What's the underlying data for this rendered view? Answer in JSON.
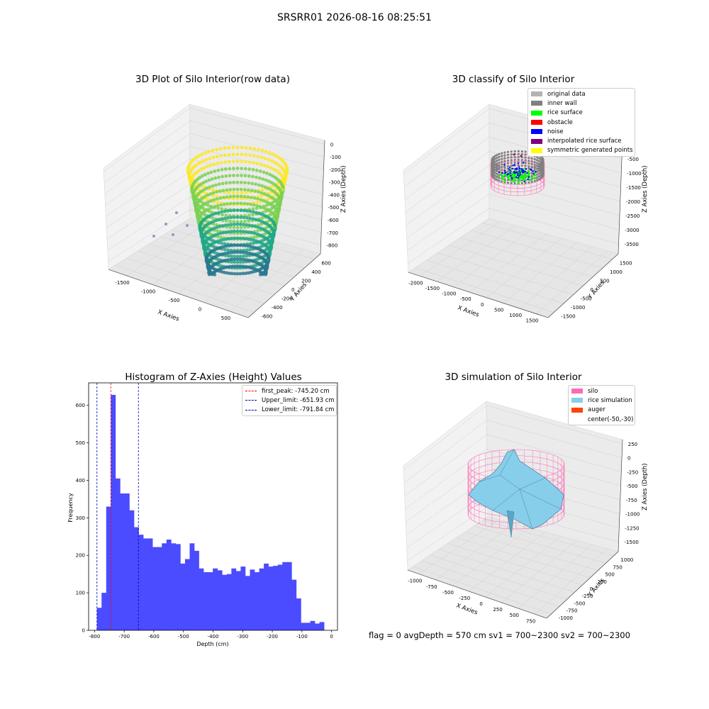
{
  "suptitle": "SRSRR01 2026-08-16 08:25:51",
  "footer": "flag = 0     avgDepth = 570 cm  sv1 = 700~2300  sv2 = 700~2300",
  "chart_data": [
    {
      "type": "scatter3d",
      "title": "3D Plot of Silo Interior(row data)",
      "xlabel": "X Axies",
      "ylabel": "Y Axies",
      "zlabel": "Z Axies (Depth)",
      "x_ticks": [
        "-1500",
        "-1000",
        "-500",
        "0",
        "500"
      ],
      "y_ticks": [
        "-600",
        "-400",
        "-200",
        "0",
        "200",
        "400",
        "600"
      ],
      "z_ticks": [
        "0",
        "-100",
        "-200",
        "-300",
        "-400",
        "-500",
        "-600",
        "-700",
        "-800"
      ],
      "colormap": "viridis",
      "zlim": [
        -850,
        0
      ]
    },
    {
      "type": "scatter3d",
      "title": "3D classify of Silo Interior",
      "xlabel": "X Axies",
      "ylabel": "Y Axies",
      "zlabel": "Z Axies (Depth)",
      "x_ticks": [
        "-2000",
        "-1500",
        "-1000",
        "-500",
        "0",
        "500",
        "1000",
        "1500"
      ],
      "y_ticks": [
        "-1500",
        "-1000",
        "-500",
        "0",
        "500",
        "1000",
        "1500"
      ],
      "z_ticks": [
        "0",
        "-500",
        "-1000",
        "-1500",
        "-2000",
        "-2500",
        "-3000",
        "-3500"
      ],
      "legend": [
        {
          "label": "original data",
          "color": "#b3b3b3"
        },
        {
          "label": "inner wall",
          "color": "#808080"
        },
        {
          "label": "rice surface",
          "color": "#00ff00"
        },
        {
          "label": "obstacle",
          "color": "#ff0000"
        },
        {
          "label": "noise",
          "color": "#0000ff"
        },
        {
          "label": "interpolated rice surface",
          "color": "#800080"
        },
        {
          "label": "symmetric generated points",
          "color": "#ffff00"
        }
      ],
      "legend_position": "top-right"
    },
    {
      "type": "bar",
      "title": "Histogram of Z-Axies (Height) Values",
      "xlabel": "Depth (cm)",
      "ylabel": "Frequency",
      "xlim": [
        -820,
        20
      ],
      "ylim": [
        0,
        660
      ],
      "x_ticks": [
        "-800",
        "-700",
        "-600",
        "-500",
        "-400",
        "-300",
        "-200",
        "-100",
        "0"
      ],
      "y_ticks": [
        "0",
        "100",
        "200",
        "300",
        "400",
        "500",
        "600"
      ],
      "bin_start": -792,
      "bin_width": 15.65,
      "values": [
        60,
        100,
        330,
        628,
        405,
        365,
        365,
        320,
        275,
        255,
        245,
        245,
        222,
        222,
        232,
        242,
        232,
        230,
        178,
        190,
        232,
        212,
        165,
        155,
        155,
        165,
        160,
        148,
        150,
        165,
        158,
        170,
        145,
        162,
        155,
        165,
        178,
        170,
        172,
        175,
        182,
        182,
        135,
        85,
        20,
        20,
        25,
        18,
        22
      ],
      "bar_color": "#4b4bff",
      "vlines": [
        {
          "label": "first_peak: -745.20 cm",
          "x": -745.2,
          "color": "#ff0000"
        },
        {
          "label": "Upper_limit: -651.93 cm",
          "x": -651.93,
          "color": "#0000b0"
        },
        {
          "label": "Lower_limit: -791.84 cm",
          "x": -791.84,
          "color": "#0000b0"
        }
      ],
      "legend_position": "top-right"
    },
    {
      "type": "surface3d",
      "title": "3D simulation of Silo Interior",
      "xlabel": "X Axies",
      "ylabel": "Y Axies",
      "zlabel": "Z Axies (Depth)",
      "x_ticks": [
        "-1000",
        "-750",
        "-500",
        "-250",
        "0",
        "250",
        "500",
        "750"
      ],
      "y_ticks": [
        "-1000",
        "-750",
        "-500",
        "-250",
        "0",
        "250",
        "500",
        "750",
        "1000"
      ],
      "z_ticks": [
        "250",
        "0",
        "-250",
        "-500",
        "-750",
        "-1000",
        "-1250",
        "-1500"
      ],
      "legend": [
        {
          "label": "silo",
          "color": "#ff69b4"
        },
        {
          "label": "rice simulation",
          "color": "#87ceeb"
        },
        {
          "label": "auger",
          "color": "#ff4500"
        },
        {
          "label": "center(-50,-30)",
          "color": ""
        }
      ],
      "legend_position": "top-right"
    }
  ]
}
